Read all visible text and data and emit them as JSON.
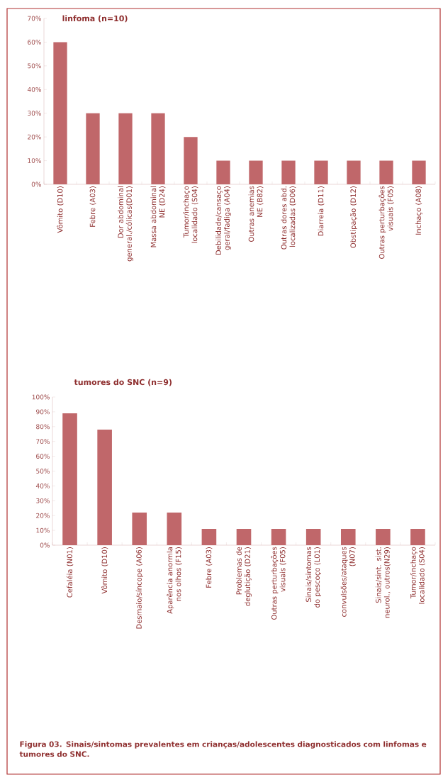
{
  "chart_data": [
    {
      "type": "bar",
      "title": "linfoma (n=10)",
      "categories": [
        "Vômito (D10)",
        "Febre (A03)",
        "Dor abdominal general./cólicas(D01)",
        "Massa abdominal NE (D24)",
        "Tumor/inchaço localidado (S04)",
        "Debilidade/cansaço geral/fadiga (A04)",
        "Outras anemias NE (B82)",
        "Outras dores abd. localizadas (D06)",
        "Diarreia (D11)",
        "Obstipação (D12)",
        "Outras perturbações visuais (F05)",
        "Inchaço (A08)"
      ],
      "values": [
        60,
        30,
        30,
        30,
        20,
        10,
        10,
        10,
        10,
        10,
        10,
        10
      ],
      "color": "#c0676a",
      "ylim": [
        0,
        70
      ],
      "yticks": [
        {
          "value": 0,
          "label": "0%"
        },
        {
          "value": 10,
          "label": "10%"
        },
        {
          "value": 20,
          "label": "20%"
        },
        {
          "value": 30,
          "label": "30%"
        },
        {
          "value": 40,
          "label": "40%"
        },
        {
          "value": 50,
          "label": "50%"
        },
        {
          "value": 60,
          "label": "60%"
        },
        {
          "value": 70,
          "label": "70%"
        }
      ]
    },
    {
      "type": "bar",
      "title": "tumores do SNC (n=9)",
      "categories": [
        "Cefaléia (N01)",
        "Vômito (D10)",
        "Desmaio/síncope (A06)",
        "Aparência anormla nos olhos (F15)",
        "Febre (A03)",
        "Problemas de deglutição (D21)",
        "Outras perturbações visuais (F05)",
        "Sinais/sintomas do pescoço (L01)",
        "convulsões/ataques (N07)",
        "Sinais/sint. sist. neurol., outros(N29)",
        "Tumor/inchaço localidado (S04)"
      ],
      "values": [
        89,
        78,
        22,
        22,
        11,
        11,
        11,
        11,
        11,
        11,
        11
      ],
      "color": "#c0676a",
      "ylim": [
        0,
        100
      ],
      "yticks": [
        {
          "value": 0,
          "label": "0%"
        },
        {
          "value": 10,
          "label": "10%"
        },
        {
          "value": 20,
          "label": "20%"
        },
        {
          "value": 30,
          "label": "30%"
        },
        {
          "value": 40,
          "label": "40%"
        },
        {
          "value": 50,
          "label": "50%"
        },
        {
          "value": 60,
          "label": "60%"
        },
        {
          "value": 70,
          "label": "70%"
        },
        {
          "value": 80,
          "label": "80%"
        },
        {
          "value": 90,
          "label": "90%"
        },
        {
          "value": 100,
          "label": "100%"
        }
      ],
      "annotations": [
        "Figura 03. Sinais/sintomas prevalentes em crianças/adolescentes diagnosticados com linfomas e tumores do SNC."
      ]
    }
  ]
}
